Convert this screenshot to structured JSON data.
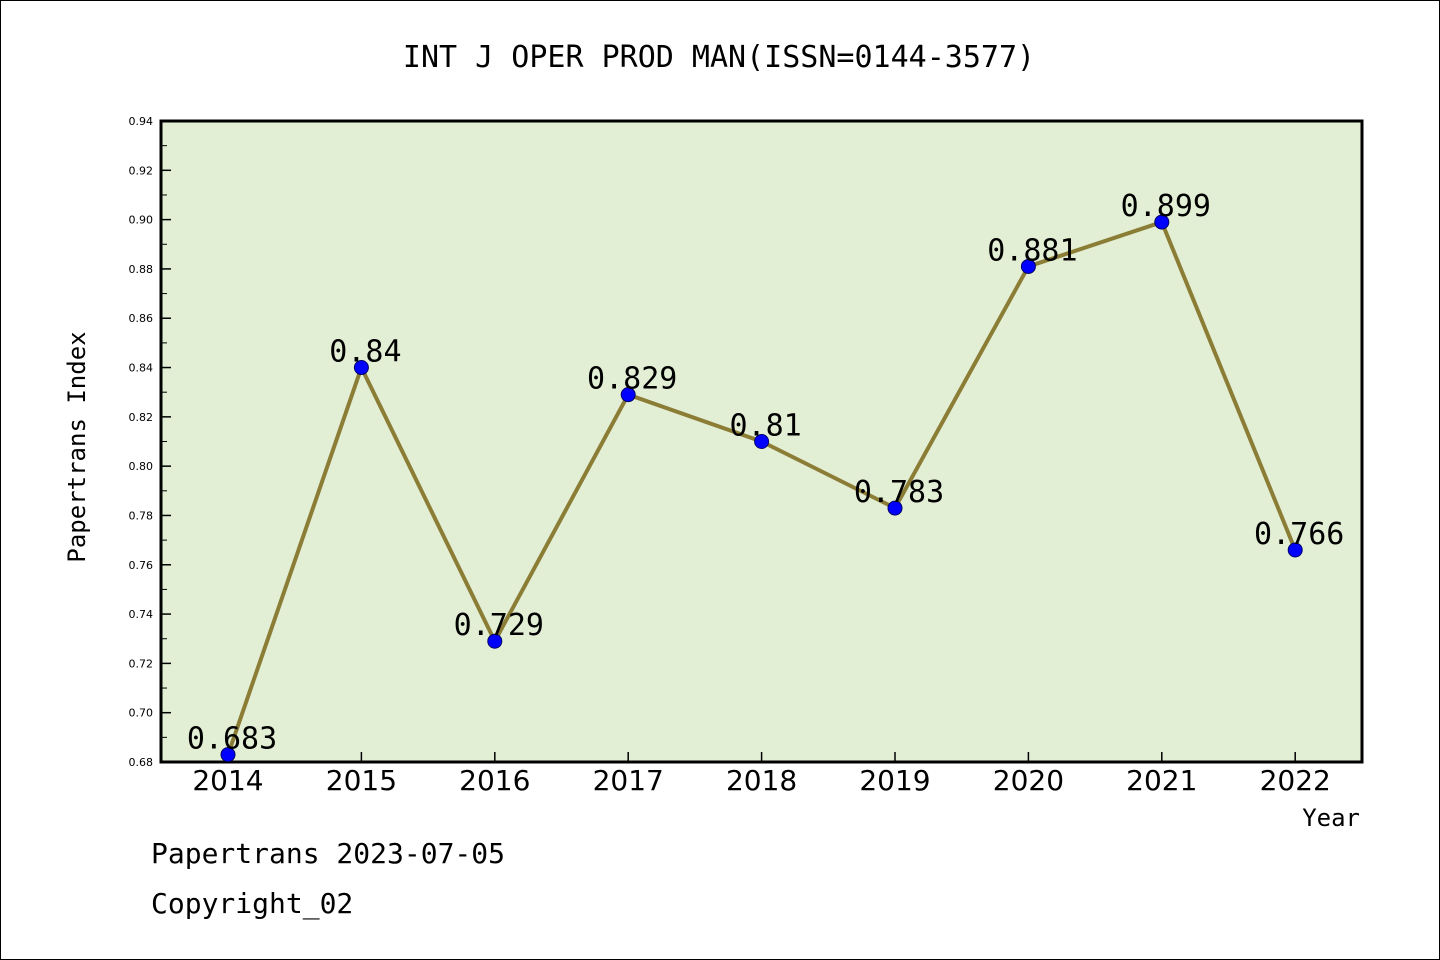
{
  "chart_data": {
    "type": "line",
    "title": "INT J OPER PROD MAN(ISSN=0144-3577)",
    "xlabel": "Year",
    "ylabel": "Papertrans Index",
    "categories": [
      "2014",
      "2015",
      "2016",
      "2017",
      "2018",
      "2019",
      "2020",
      "2021",
      "2022"
    ],
    "values": [
      0.683,
      0.84,
      0.729,
      0.829,
      0.81,
      0.783,
      0.881,
      0.899,
      0.766
    ],
    "data_labels": [
      "0.683",
      "0.84",
      "0.729",
      "0.829",
      "0.81",
      "0.783",
      "0.881",
      "0.899",
      "0.766"
    ],
    "ylim": [
      0.68,
      0.94
    ],
    "yticks": [
      "0.68",
      "0.70",
      "0.72",
      "0.74",
      "0.76",
      "0.78",
      "0.80",
      "0.82",
      "0.84",
      "0.86",
      "0.88",
      "0.90",
      "0.92",
      "0.94"
    ],
    "grid": false,
    "colors": {
      "plot_background": "#e2efd5",
      "line": "#8b7d35",
      "marker": "#0000ff"
    }
  },
  "footer": {
    "line1": "Papertrans 2023-07-05",
    "line2": "Copyright_02"
  }
}
